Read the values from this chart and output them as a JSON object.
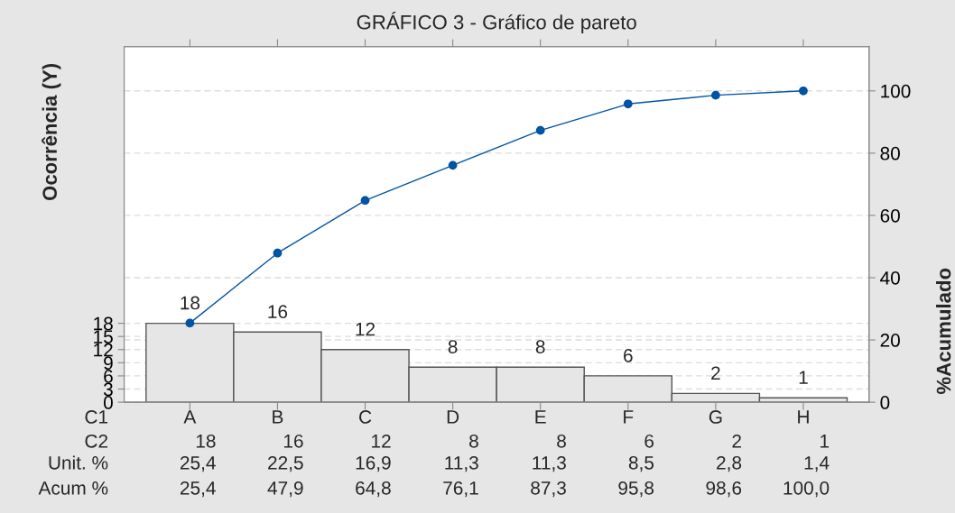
{
  "chart_data": {
    "type": "bar",
    "title": "GRÁFICO 3 - Gráfico de pareto",
    "ylabel": "Ocorrência (Y)",
    "y2label": "%Acumulado",
    "categories": [
      "A",
      "B",
      "C",
      "D",
      "E",
      "F",
      "G",
      "H"
    ],
    "series": [
      {
        "color": "#e6e6e6",
        "values": [
          18,
          16,
          12,
          8,
          8,
          6,
          2,
          1
        ],
        "value_labels": [
          "18",
          "16",
          "12",
          "8",
          "8",
          "6",
          "2",
          "1"
        ]
      },
      {
        "type": "line",
        "axis": "y2",
        "color": "#0054a6",
        "marker": "circle",
        "values": [
          25.4,
          47.9,
          64.8,
          76.1,
          87.3,
          95.8,
          98.6,
          100.0
        ],
        "value_labels": [
          "25,4",
          "47,9",
          "64,8",
          "76,1",
          "87,3",
          "95,8",
          "98,6",
          "100,0"
        ]
      }
    ],
    "annotations": [
      "C1",
      "C2",
      "Unit. %",
      "Acum %",
      "25,4",
      "22,5",
      "16,9",
      "11,3",
      "11,3",
      "8,5",
      "2,8",
      "1,4"
    ],
    "ylim": [
      0,
      81.1
    ],
    "yticks": [
      0,
      3,
      6,
      9,
      12,
      15,
      18
    ],
    "y2lim": [
      0,
      114.2
    ],
    "y2ticks": [
      0,
      20,
      40,
      60,
      80,
      100
    ],
    "grid": "y"
  }
}
